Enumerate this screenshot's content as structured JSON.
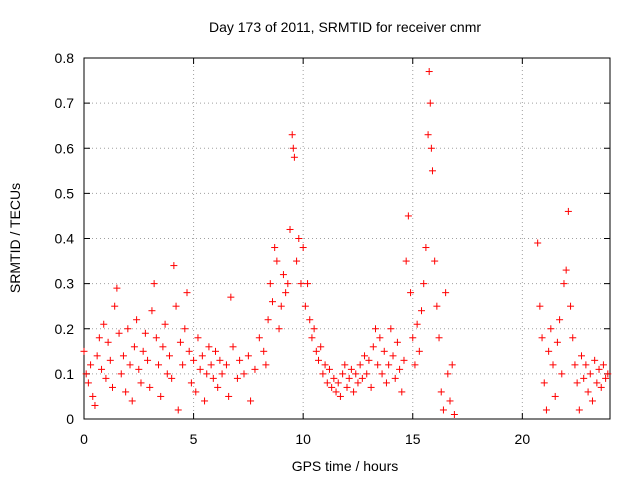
{
  "chart_data": {
    "type": "scatter",
    "title": "Day 173 of 2011, SRMTID for receiver cnmr",
    "xlabel": "GPS time / hours",
    "ylabel": "SRMTID / TECUs",
    "xlim": [
      0,
      24
    ],
    "ylim": [
      0,
      0.8
    ],
    "xticks": [
      0,
      5,
      10,
      15,
      20
    ],
    "yticks": [
      0,
      0.1,
      0.2,
      0.3,
      0.4,
      0.5,
      0.6,
      0.7,
      0.8
    ],
    "xtick_labels": [
      "0",
      "5",
      "10",
      "15",
      "20"
    ],
    "ytick_labels": [
      "0",
      "0.1",
      "0.2",
      "0.3",
      "0.4",
      "0.5",
      "0.6",
      "0.7",
      "0.8"
    ],
    "grid": true,
    "marker": "plus",
    "color": "#ff0000",
    "series": [
      {
        "points": [
          [
            0.0,
            0.15
          ],
          [
            0.1,
            0.1
          ],
          [
            0.2,
            0.08
          ],
          [
            0.3,
            0.12
          ],
          [
            0.4,
            0.05
          ],
          [
            0.5,
            0.03
          ],
          [
            0.6,
            0.14
          ],
          [
            0.7,
            0.18
          ],
          [
            0.8,
            0.11
          ],
          [
            0.9,
            0.21
          ],
          [
            1.0,
            0.09
          ],
          [
            1.1,
            0.17
          ],
          [
            1.2,
            0.13
          ],
          [
            1.3,
            0.07
          ],
          [
            1.4,
            0.25
          ],
          [
            1.5,
            0.29
          ],
          [
            1.6,
            0.19
          ],
          [
            1.7,
            0.1
          ],
          [
            1.8,
            0.14
          ],
          [
            1.9,
            0.06
          ],
          [
            2.0,
            0.2
          ],
          [
            2.1,
            0.12
          ],
          [
            2.2,
            0.04
          ],
          [
            2.3,
            0.16
          ],
          [
            2.4,
            0.22
          ],
          [
            2.5,
            0.11
          ],
          [
            2.6,
            0.08
          ],
          [
            2.7,
            0.15
          ],
          [
            2.8,
            0.19
          ],
          [
            2.9,
            0.13
          ],
          [
            3.0,
            0.07
          ],
          [
            3.1,
            0.24
          ],
          [
            3.2,
            0.3
          ],
          [
            3.3,
            0.18
          ],
          [
            3.4,
            0.12
          ],
          [
            3.5,
            0.05
          ],
          [
            3.6,
            0.16
          ],
          [
            3.7,
            0.21
          ],
          [
            3.8,
            0.1
          ],
          [
            3.9,
            0.14
          ],
          [
            4.0,
            0.09
          ],
          [
            4.1,
            0.34
          ],
          [
            4.2,
            0.25
          ],
          [
            4.3,
            0.02
          ],
          [
            4.4,
            0.17
          ],
          [
            4.5,
            0.12
          ],
          [
            4.6,
            0.2
          ],
          [
            4.7,
            0.28
          ],
          [
            4.8,
            0.15
          ],
          [
            4.9,
            0.08
          ],
          [
            5.0,
            0.13
          ],
          [
            5.1,
            0.06
          ],
          [
            5.2,
            0.18
          ],
          [
            5.3,
            0.11
          ],
          [
            5.4,
            0.14
          ],
          [
            5.5,
            0.04
          ],
          [
            5.6,
            0.1
          ],
          [
            5.7,
            0.16
          ],
          [
            5.8,
            0.12
          ],
          [
            5.9,
            0.09
          ],
          [
            6.0,
            0.15
          ],
          [
            6.1,
            0.07
          ],
          [
            6.2,
            0.13
          ],
          [
            6.3,
            0.1
          ],
          [
            6.5,
            0.12
          ],
          [
            6.6,
            0.05
          ],
          [
            6.7,
            0.27
          ],
          [
            6.8,
            0.16
          ],
          [
            7.0,
            0.09
          ],
          [
            7.1,
            0.13
          ],
          [
            7.3,
            0.1
          ],
          [
            7.5,
            0.14
          ],
          [
            7.6,
            0.04
          ],
          [
            7.8,
            0.11
          ],
          [
            8.0,
            0.18
          ],
          [
            8.2,
            0.15
          ],
          [
            8.3,
            0.12
          ],
          [
            8.4,
            0.22
          ],
          [
            8.5,
            0.3
          ],
          [
            8.6,
            0.26
          ],
          [
            8.7,
            0.38
          ],
          [
            8.8,
            0.35
          ],
          [
            8.9,
            0.2
          ],
          [
            9.0,
            0.25
          ],
          [
            9.1,
            0.32
          ],
          [
            9.2,
            0.28
          ],
          [
            9.3,
            0.3
          ],
          [
            9.4,
            0.42
          ],
          [
            9.5,
            0.63
          ],
          [
            9.55,
            0.6
          ],
          [
            9.6,
            0.58
          ],
          [
            9.7,
            0.35
          ],
          [
            9.8,
            0.4
          ],
          [
            9.9,
            0.3
          ],
          [
            10.0,
            0.38
          ],
          [
            10.1,
            0.25
          ],
          [
            10.2,
            0.3
          ],
          [
            10.3,
            0.22
          ],
          [
            10.4,
            0.18
          ],
          [
            10.5,
            0.2
          ],
          [
            10.6,
            0.15
          ],
          [
            10.7,
            0.13
          ],
          [
            10.8,
            0.16
          ],
          [
            10.9,
            0.1
          ],
          [
            11.0,
            0.12
          ],
          [
            11.1,
            0.08
          ],
          [
            11.2,
            0.11
          ],
          [
            11.3,
            0.07
          ],
          [
            11.4,
            0.09
          ],
          [
            11.5,
            0.06
          ],
          [
            11.6,
            0.08
          ],
          [
            11.7,
            0.05
          ],
          [
            11.8,
            0.1
          ],
          [
            11.9,
            0.12
          ],
          [
            12.0,
            0.07
          ],
          [
            12.1,
            0.09
          ],
          [
            12.2,
            0.11
          ],
          [
            12.3,
            0.06
          ],
          [
            12.4,
            0.1
          ],
          [
            12.5,
            0.08
          ],
          [
            12.6,
            0.12
          ],
          [
            12.7,
            0.09
          ],
          [
            12.8,
            0.14
          ],
          [
            12.9,
            0.1
          ],
          [
            13.0,
            0.13
          ],
          [
            13.1,
            0.07
          ],
          [
            13.2,
            0.16
          ],
          [
            13.3,
            0.2
          ],
          [
            13.4,
            0.12
          ],
          [
            13.5,
            0.18
          ],
          [
            13.6,
            0.1
          ],
          [
            13.7,
            0.15
          ],
          [
            13.8,
            0.08
          ],
          [
            13.9,
            0.12
          ],
          [
            14.0,
            0.2
          ],
          [
            14.1,
            0.14
          ],
          [
            14.2,
            0.09
          ],
          [
            14.3,
            0.17
          ],
          [
            14.4,
            0.11
          ],
          [
            14.5,
            0.06
          ],
          [
            14.6,
            0.13
          ],
          [
            14.7,
            0.35
          ],
          [
            14.8,
            0.45
          ],
          [
            14.9,
            0.28
          ],
          [
            15.0,
            0.18
          ],
          [
            15.1,
            0.12
          ],
          [
            15.2,
            0.21
          ],
          [
            15.3,
            0.15
          ],
          [
            15.4,
            0.24
          ],
          [
            15.5,
            0.3
          ],
          [
            15.6,
            0.38
          ],
          [
            15.7,
            0.63
          ],
          [
            15.75,
            0.77
          ],
          [
            15.8,
            0.7
          ],
          [
            15.85,
            0.6
          ],
          [
            15.9,
            0.55
          ],
          [
            16.0,
            0.35
          ],
          [
            16.1,
            0.25
          ],
          [
            16.2,
            0.18
          ],
          [
            16.3,
            0.06
          ],
          [
            16.4,
            0.02
          ],
          [
            16.5,
            0.28
          ],
          [
            16.6,
            0.1
          ],
          [
            16.7,
            0.04
          ],
          [
            16.8,
            0.12
          ],
          [
            16.9,
            0.01
          ],
          [
            20.7,
            0.39
          ],
          [
            20.8,
            0.25
          ],
          [
            20.9,
            0.18
          ],
          [
            21.0,
            0.08
          ],
          [
            21.1,
            0.02
          ],
          [
            21.2,
            0.15
          ],
          [
            21.3,
            0.2
          ],
          [
            21.4,
            0.12
          ],
          [
            21.5,
            0.05
          ],
          [
            21.6,
            0.17
          ],
          [
            21.7,
            0.22
          ],
          [
            21.8,
            0.1
          ],
          [
            21.9,
            0.3
          ],
          [
            22.0,
            0.33
          ],
          [
            22.1,
            0.46
          ],
          [
            22.2,
            0.25
          ],
          [
            22.3,
            0.18
          ],
          [
            22.4,
            0.12
          ],
          [
            22.5,
            0.08
          ],
          [
            22.6,
            0.02
          ],
          [
            22.7,
            0.14
          ],
          [
            22.8,
            0.09
          ],
          [
            22.9,
            0.12
          ],
          [
            23.0,
            0.06
          ],
          [
            23.1,
            0.1
          ],
          [
            23.2,
            0.04
          ],
          [
            23.3,
            0.13
          ],
          [
            23.4,
            0.08
          ],
          [
            23.5,
            0.11
          ],
          [
            23.6,
            0.07
          ],
          [
            23.7,
            0.12
          ],
          [
            23.8,
            0.09
          ],
          [
            23.9,
            0.1
          ]
        ]
      }
    ]
  }
}
